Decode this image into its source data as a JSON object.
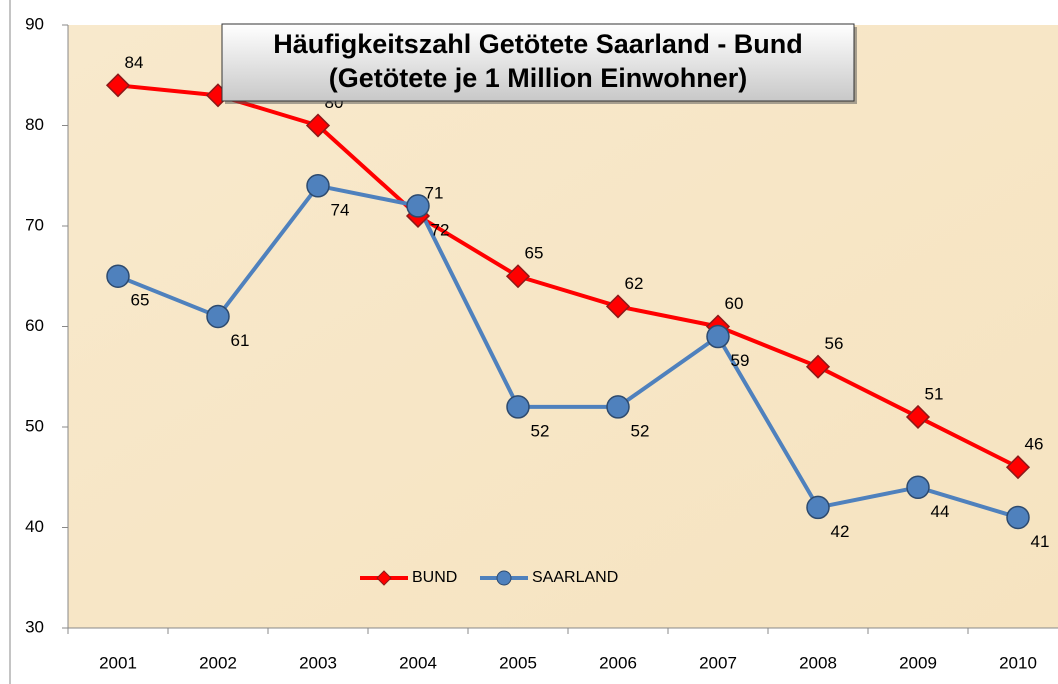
{
  "chart_data": {
    "type": "line",
    "title": "Häufigkeitszahl Getötete Saarland - Bund",
    "subtitle": "(Getötete je 1 Million Einwohner)",
    "categories": [
      "2001",
      "2002",
      "2003",
      "2004",
      "2005",
      "2006",
      "2007",
      "2008",
      "2009",
      "2010"
    ],
    "series": [
      {
        "name": "BUND",
        "color": "#ff0000",
        "values": [
          84,
          83,
          80,
          71,
          65,
          62,
          60,
          56,
          51,
          46
        ]
      },
      {
        "name": "SAARLAND",
        "color": "#4f81bd",
        "values": [
          65,
          61,
          74,
          72,
          52,
          52,
          59,
          42,
          44,
          41
        ]
      }
    ],
    "ylim": [
      30,
      90
    ],
    "yticks": [
      30,
      40,
      50,
      60,
      70,
      80,
      90
    ],
    "grid": false,
    "legend": "bottom"
  }
}
